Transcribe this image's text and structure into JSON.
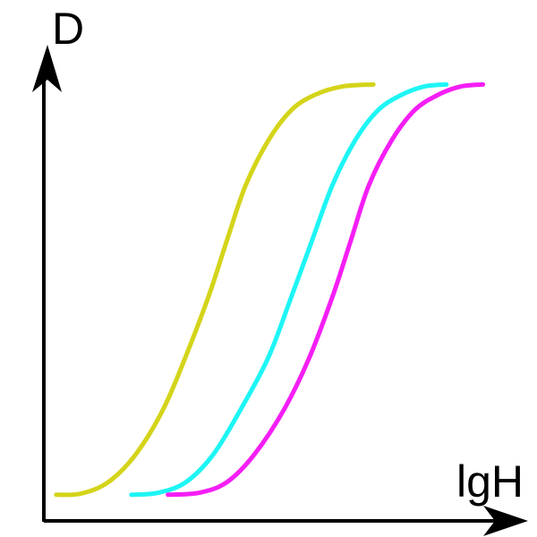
{
  "chart_data": {
    "type": "line",
    "title": "",
    "xlabel": "lgH",
    "ylabel": "D",
    "grid": false,
    "legend": "none",
    "xlim": [
      0,
      10
    ],
    "ylim": [
      0,
      10
    ],
    "series": [
      {
        "color": "#d4d41a",
        "x": [
          0.25,
          0.8,
          1.4,
          2.0,
          2.6,
          3.1,
          3.6,
          4.0,
          4.4,
          4.9,
          5.4,
          5.9,
          6.5,
          7.2
        ],
        "values": [
          0.15,
          0.18,
          0.45,
          1.1,
          2.15,
          3.4,
          4.8,
          6.1,
          7.35,
          8.4,
          9.1,
          9.45,
          9.65,
          9.7
        ]
      },
      {
        "color": "#1ef5f5",
        "x": [
          1.9,
          2.5,
          3.1,
          3.7,
          4.3,
          4.9,
          5.4,
          5.85,
          6.3,
          6.8,
          7.3,
          7.8,
          8.3,
          8.8
        ],
        "values": [
          0.15,
          0.2,
          0.45,
          1.1,
          2.15,
          3.35,
          4.75,
          6.05,
          7.35,
          8.4,
          9.1,
          9.45,
          9.65,
          9.7
        ]
      },
      {
        "color": "#f51ef5",
        "x": [
          2.7,
          3.4,
          4.0,
          4.6,
          5.25,
          5.8,
          6.3,
          6.7,
          7.1,
          7.6,
          8.1,
          8.6,
          9.1,
          9.6
        ],
        "values": [
          0.15,
          0.2,
          0.45,
          1.1,
          2.15,
          3.35,
          4.75,
          6.05,
          7.35,
          8.4,
          9.1,
          9.45,
          9.65,
          9.7
        ]
      }
    ]
  }
}
